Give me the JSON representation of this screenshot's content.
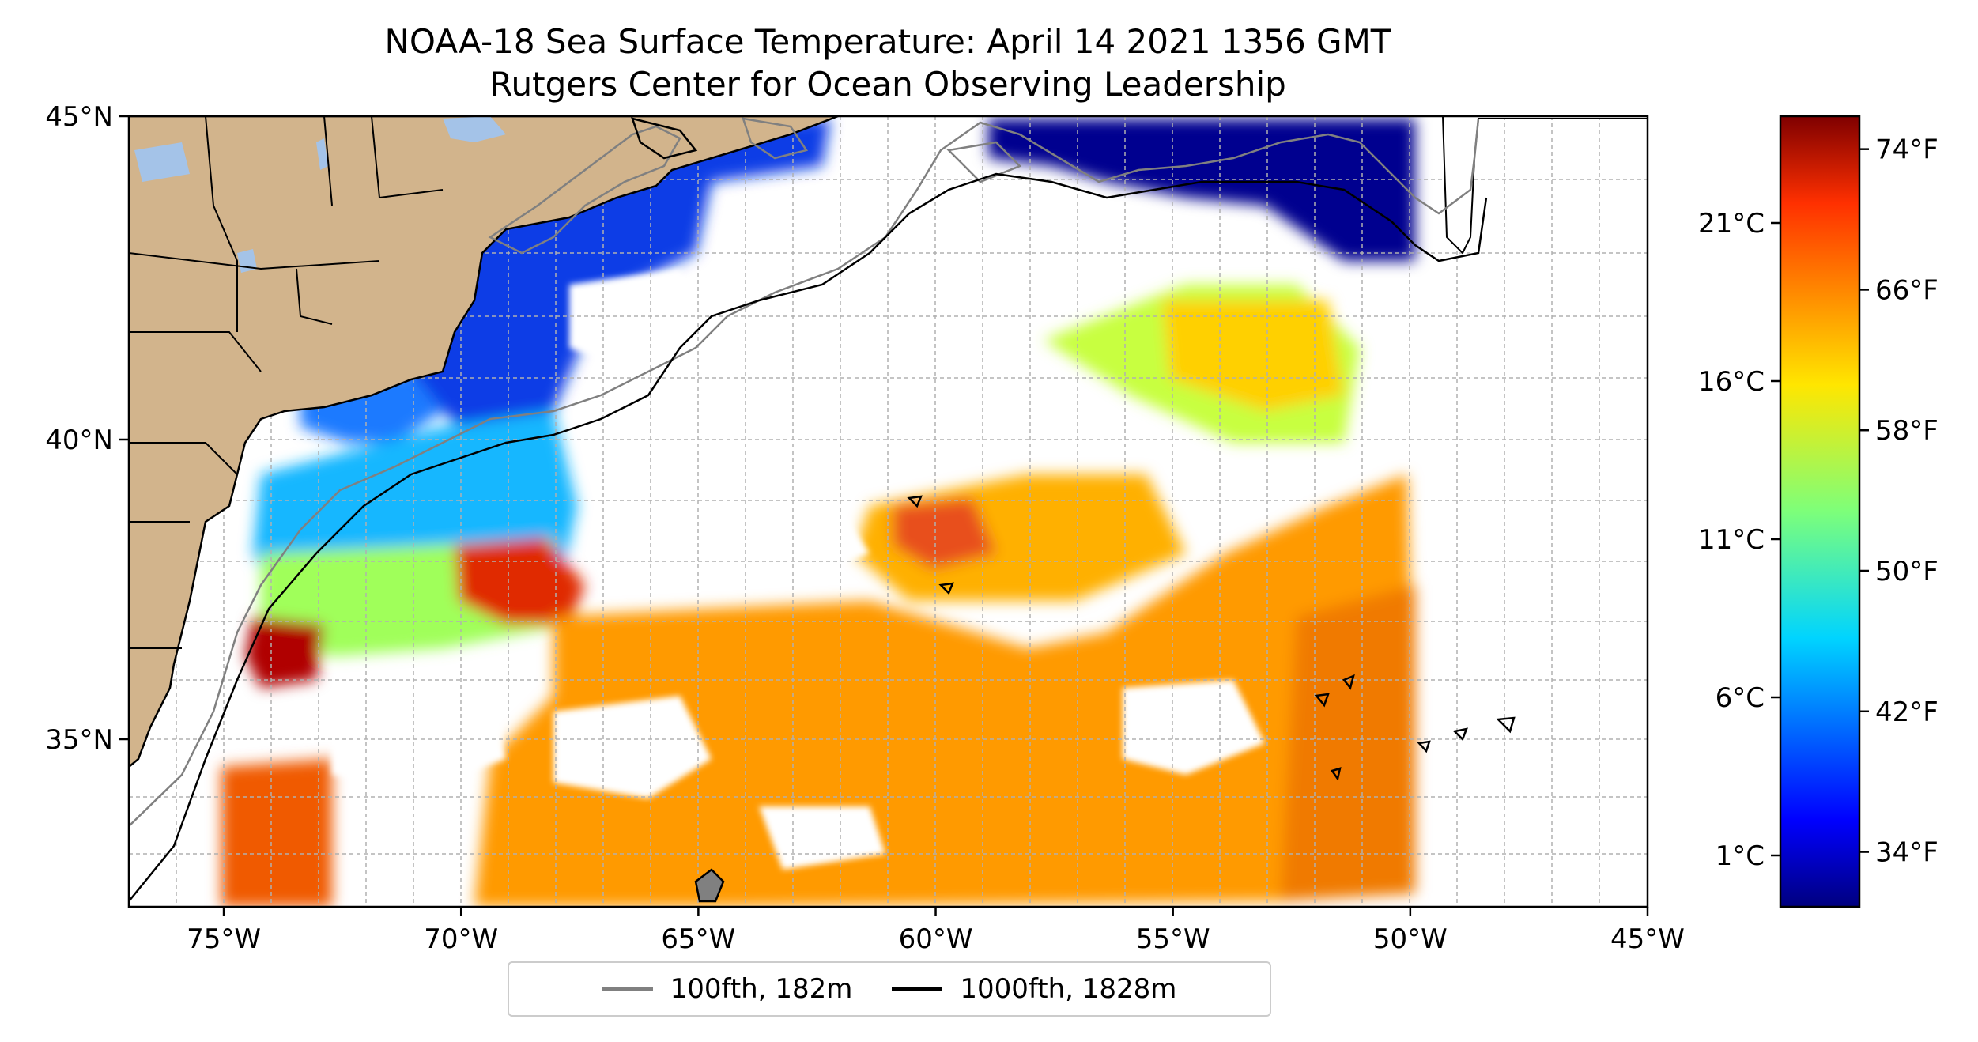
{
  "title": {
    "line1": "NOAA-18 Sea Surface Temperature: April 14 2021 1356 GMT",
    "line2": "Rutgers Center for Ocean Observing Leadership"
  },
  "map": {
    "lon_range": [
      -77,
      -45
    ],
    "lat_range": [
      32.3,
      45
    ],
    "lon_ticks": [
      {
        "value": -75,
        "label": "75°W"
      },
      {
        "value": -70,
        "label": "70°W"
      },
      {
        "value": -65,
        "label": "65°W"
      },
      {
        "value": -60,
        "label": "60°W"
      },
      {
        "value": -55,
        "label": "55°W"
      },
      {
        "value": -50,
        "label": "50°W"
      },
      {
        "value": -45,
        "label": "45°W"
      }
    ],
    "lat_ticks": [
      {
        "value": 45,
        "label": "45°N"
      },
      {
        "value": 40,
        "label": "40°N"
      },
      {
        "value": 35,
        "label": "35°N"
      }
    ],
    "land_color": "#d2b48c",
    "lake_color": "#a4c3e8",
    "grid": "dashed gray, 1° spacing",
    "swath_east_edge_lon": -50
  },
  "legend": {
    "placement": "bottom-center",
    "entries": [
      {
        "label": "100fth, 182m",
        "color": "#808080"
      },
      {
        "label": "1000fth, 1828m",
        "color": "#000000"
      }
    ]
  },
  "colorbar": {
    "colormap": "jet",
    "range_celsius": [
      0,
      25
    ],
    "celsius_ticks": [
      {
        "value": 1,
        "label": "1°C"
      },
      {
        "value": 6,
        "label": "6°C"
      },
      {
        "value": 11,
        "label": "11°C"
      },
      {
        "value": 16,
        "label": "16°C"
      },
      {
        "value": 21,
        "label": "21°C"
      }
    ],
    "fahrenheit_ticks": [
      {
        "value": 34,
        "label": "34°F"
      },
      {
        "value": 42,
        "label": "42°F"
      },
      {
        "value": 50,
        "label": "50°F"
      },
      {
        "value": 58,
        "label": "58°F"
      },
      {
        "value": 66,
        "label": "66°F"
      },
      {
        "value": 74,
        "label": "74°F"
      }
    ]
  }
}
